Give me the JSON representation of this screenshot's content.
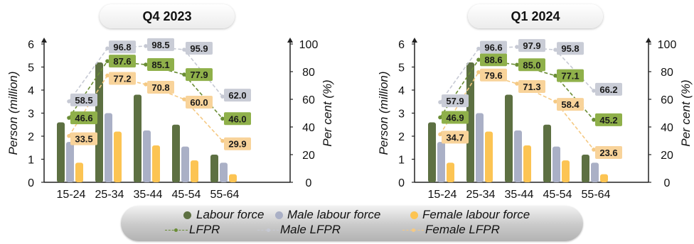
{
  "colors": {
    "labour_force": "#5d7042",
    "male_labour_force": "#aab0c6",
    "female_labour_force": "#fcc453",
    "lfpr_label_bg": "#8fb04a",
    "male_lfpr_label_bg": "#c9ccd6",
    "female_lfpr_label_bg": "#f8d39a",
    "lfpr_line": "#6a8d35",
    "male_lfpr_line": "#c6c9d4",
    "female_lfpr_line": "#f5c983"
  },
  "legend": {
    "labour_force": "Labour force",
    "male_labour_force": "Male labour force",
    "female_labour_force": "Female labour force",
    "lfpr": "LFPR",
    "male_lfpr": "Male LFPR",
    "female_lfpr": "Female LFPR"
  },
  "chart_data": [
    {
      "type": "bar",
      "title": "Q4 2023",
      "categories": [
        "15-24",
        "25-34",
        "35-44",
        "45-54",
        "55-64"
      ],
      "ylabel": "Person (million)",
      "ylim": [
        0,
        6
      ],
      "yticks": [
        "0",
        "1",
        "2",
        "3",
        "4",
        "5",
        "6"
      ],
      "y2label": "Per cent (%)",
      "y2lim": [
        0,
        100
      ],
      "y2ticks": [
        "0",
        "20",
        "40",
        "60",
        "80",
        "100"
      ],
      "series": [
        {
          "name": "Labour force",
          "kind": "bar",
          "values": [
            2.6,
            5.2,
            3.8,
            2.5,
            1.2
          ]
        },
        {
          "name": "Male labour force",
          "kind": "bar",
          "values": [
            1.75,
            3.0,
            2.25,
            1.55,
            0.85
          ]
        },
        {
          "name": "Female labour force",
          "kind": "bar",
          "values": [
            0.85,
            2.2,
            1.6,
            0.95,
            0.35
          ]
        },
        {
          "name": "LFPR",
          "kind": "line",
          "axis": "right",
          "values": [
            46.6,
            87.6,
            85.1,
            77.9,
            46.0
          ],
          "labels": [
            "46.6",
            "87.6",
            "85.1",
            "77.9",
            "46.0"
          ]
        },
        {
          "name": "Male LFPR",
          "kind": "line",
          "axis": "right",
          "values": [
            58.5,
            96.8,
            98.5,
            95.9,
            62.0
          ],
          "labels": [
            "58.5",
            "96.8",
            "98.5",
            "95.9",
            "62.0"
          ]
        },
        {
          "name": "Female LFPR",
          "kind": "line",
          "axis": "right",
          "values": [
            33.5,
            77.2,
            70.8,
            60.0,
            29.9
          ],
          "labels": [
            "33.5",
            "77.2",
            "70.8",
            "60.0",
            "29.9"
          ]
        }
      ]
    },
    {
      "type": "bar",
      "title": "Q1 2024",
      "categories": [
        "15-24",
        "25-34",
        "35-44",
        "45-54",
        "55-64"
      ],
      "ylabel": "Person (million)",
      "ylim": [
        0,
        6
      ],
      "yticks": [
        "0",
        "1",
        "2",
        "3",
        "4",
        "5",
        "6"
      ],
      "y2label": "Per cent (%)",
      "y2lim": [
        0,
        100
      ],
      "y2ticks": [
        "0",
        "20",
        "40",
        "60",
        "80",
        "100"
      ],
      "series": [
        {
          "name": "Labour force",
          "kind": "bar",
          "values": [
            2.6,
            5.2,
            3.8,
            2.5,
            1.2
          ]
        },
        {
          "name": "Male labour force",
          "kind": "bar",
          "values": [
            1.75,
            3.0,
            2.25,
            1.55,
            0.85
          ]
        },
        {
          "name": "Female labour force",
          "kind": "bar",
          "values": [
            0.85,
            2.2,
            1.6,
            0.95,
            0.35
          ]
        },
        {
          "name": "LFPR",
          "kind": "line",
          "axis": "right",
          "values": [
            46.9,
            88.6,
            85.0,
            77.1,
            45.2
          ],
          "labels": [
            "46.9",
            "88.6",
            "85.0",
            "77.1",
            "45.2"
          ]
        },
        {
          "name": "Male LFPR",
          "kind": "line",
          "axis": "right",
          "values": [
            57.9,
            96.6,
            97.9,
            95.8,
            66.2
          ],
          "labels": [
            "57.9",
            "96.6",
            "97.9",
            "95.8",
            "66.2"
          ]
        },
        {
          "name": "Female LFPR",
          "kind": "line",
          "axis": "right",
          "values": [
            34.7,
            79.6,
            71.3,
            58.4,
            23.6
          ],
          "labels": [
            "34.7",
            "79.6",
            "71.3",
            "58.4",
            "23.6"
          ]
        }
      ]
    }
  ]
}
